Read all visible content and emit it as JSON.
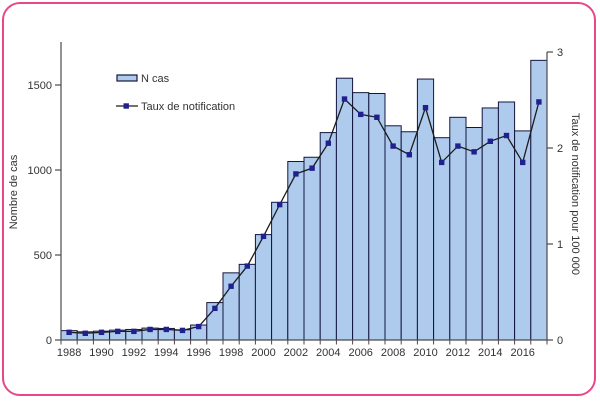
{
  "colors": {
    "bar_fill": "#aecbee",
    "bar_stroke": "#14143c",
    "line": "#1c1c1c",
    "marker": "#20208e",
    "frame": "#e9478b",
    "axis": "#4a4a4a",
    "text": "#333333"
  },
  "legend": {
    "items": [
      {
        "type": "bar",
        "label": "N cas"
      },
      {
        "type": "line-marker",
        "label": "Taux de notification"
      }
    ]
  },
  "chart_data": {
    "type": "bar",
    "years": [
      1988,
      1989,
      1990,
      1991,
      1992,
      1993,
      1994,
      1995,
      1996,
      1997,
      1998,
      1999,
      2000,
      2001,
      2002,
      2003,
      2004,
      2005,
      2006,
      2007,
      2008,
      2009,
      2010,
      2011,
      2012,
      2013,
      2014,
      2015,
      2016,
      2017
    ],
    "series": [
      {
        "name": "N cas",
        "type": "bar",
        "axis": "left",
        "values": [
          55,
          48,
          52,
          58,
          62,
          70,
          68,
          60,
          88,
          220,
          395,
          445,
          620,
          810,
          1050,
          1075,
          1220,
          1540,
          1455,
          1450,
          1260,
          1225,
          1535,
          1190,
          1310,
          1250,
          1365,
          1400,
          1230,
          1645
        ]
      },
      {
        "name": "Taux de notification",
        "type": "line",
        "axis": "right",
        "values": [
          0.08,
          0.07,
          0.08,
          0.09,
          0.09,
          0.11,
          0.11,
          0.1,
          0.14,
          0.33,
          0.56,
          0.77,
          1.08,
          1.41,
          1.73,
          1.79,
          2.05,
          2.51,
          2.35,
          2.32,
          2.02,
          1.93,
          2.42,
          1.85,
          2.02,
          1.96,
          2.07,
          2.13,
          1.85,
          2.48
        ]
      }
    ],
    "left_axis": {
      "title": "Nombre de cas",
      "ticks": [
        0,
        500,
        1000,
        1500
      ],
      "range": [
        0,
        1750
      ]
    },
    "right_axis": {
      "title": "Taux de notification pour 100 000",
      "ticks": [
        0,
        1,
        2,
        3
      ],
      "range": [
        0,
        3
      ]
    },
    "x_axis": {
      "labeled_years": [
        1988,
        1990,
        1992,
        1994,
        1996,
        1998,
        2000,
        2002,
        2004,
        2006,
        2008,
        2010,
        2012,
        2014,
        2016
      ]
    },
    "title": "",
    "xlabel": "",
    "ylabel_left": "Nombre de cas",
    "ylabel_right": "Taux de notification pour 100 000",
    "grid": false,
    "legend_position": "top-left-inside"
  }
}
